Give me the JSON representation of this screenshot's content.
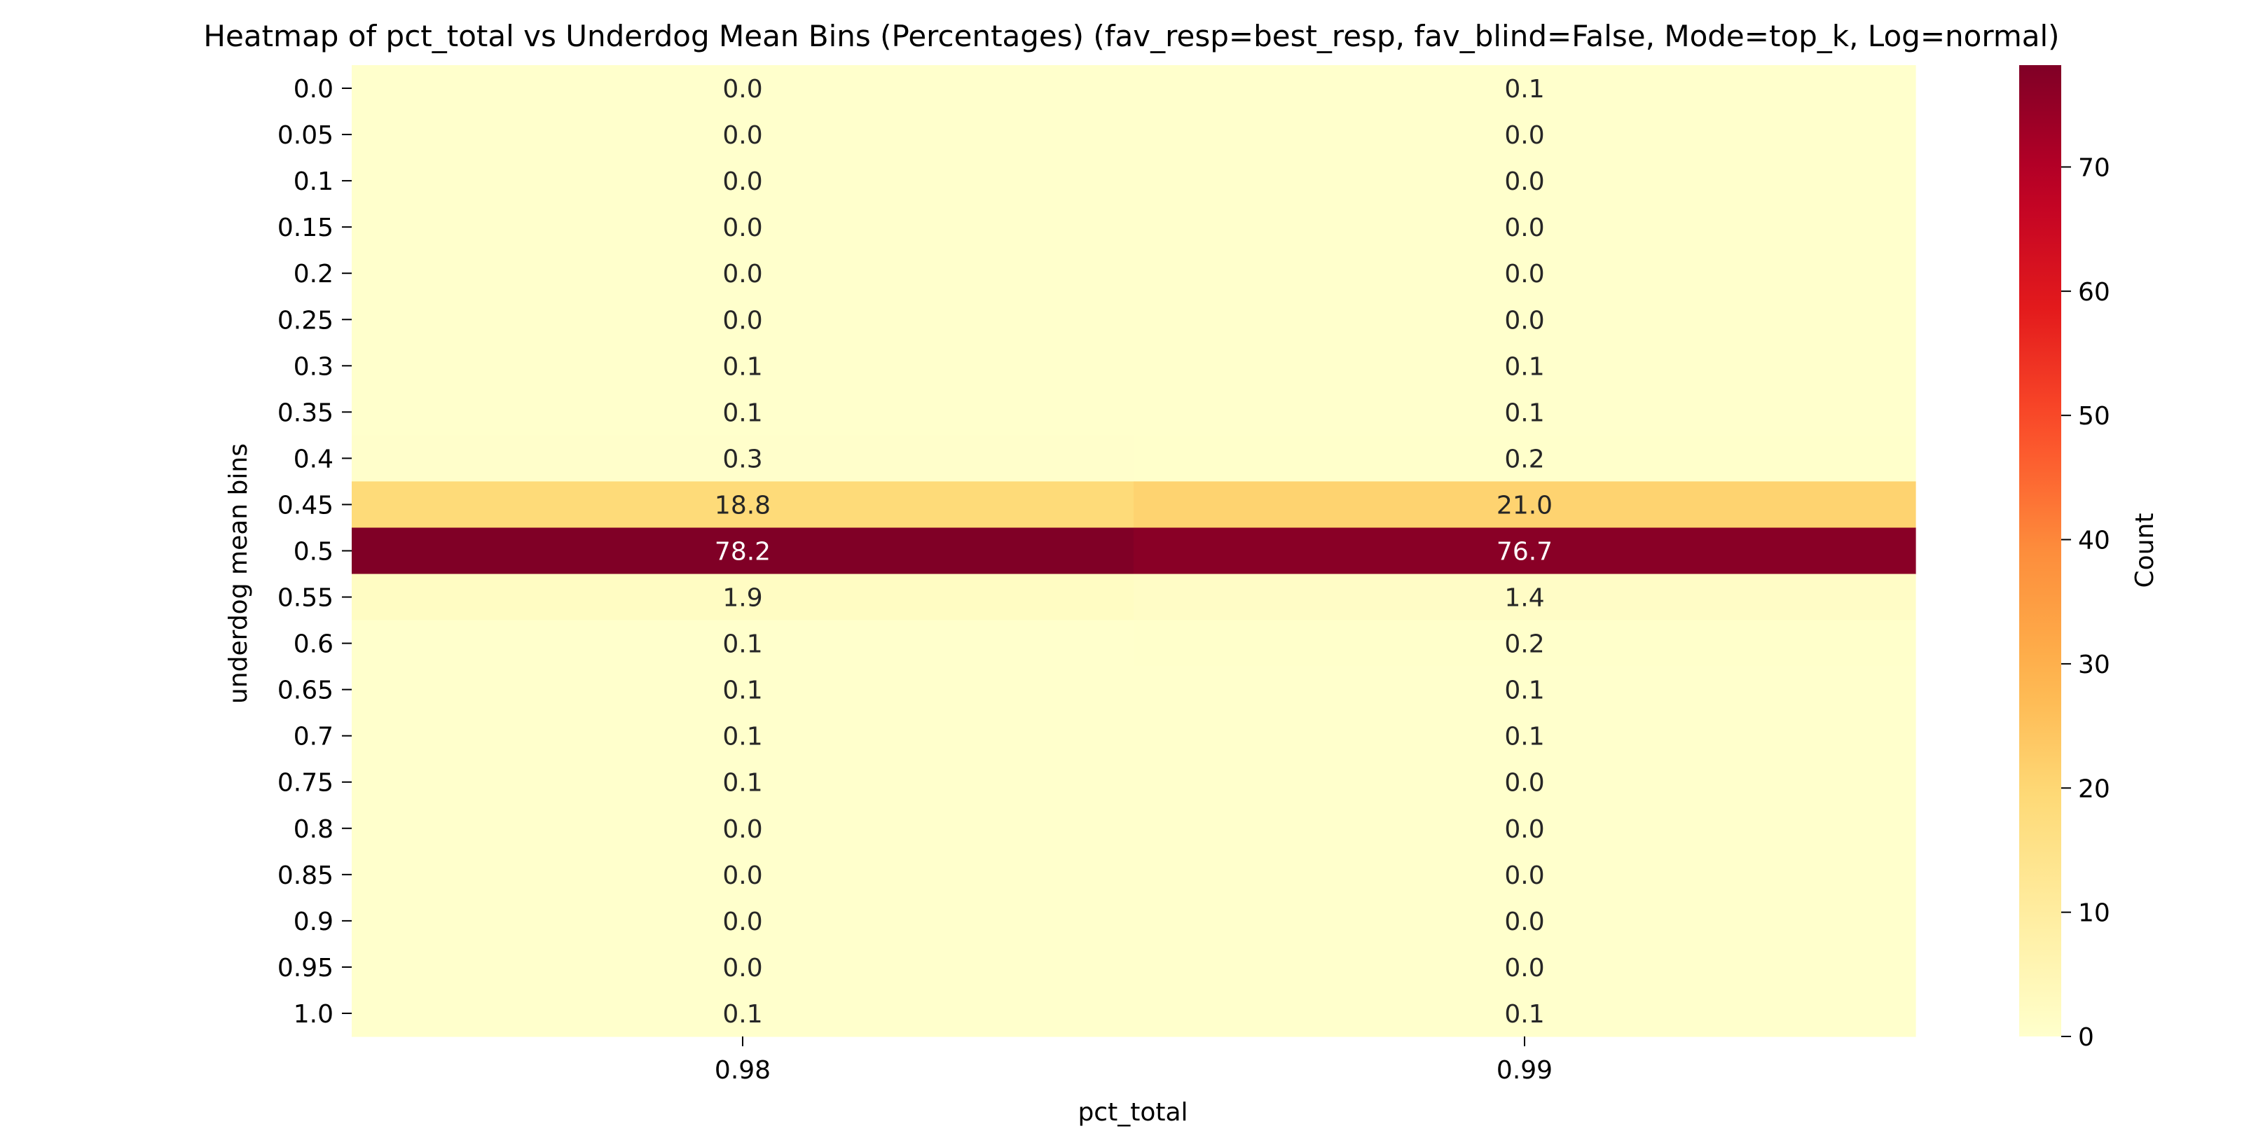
{
  "chart_data": {
    "type": "heatmap",
    "title": "Heatmap of pct_total vs Underdog Mean Bins (Percentages)  (fav_resp=best_resp, fav_blind=False, Mode=top_k, Log=normal)",
    "xlabel": "pct_total",
    "ylabel": "underdog mean bins",
    "x_categories": [
      "0.98",
      "0.99"
    ],
    "y_categories": [
      "0.0",
      "0.05",
      "0.1",
      "0.15",
      "0.2",
      "0.25",
      "0.3",
      "0.35",
      "0.4",
      "0.45",
      "0.5",
      "0.55",
      "0.6",
      "0.65",
      "0.7",
      "0.75",
      "0.8",
      "0.85",
      "0.9",
      "0.95",
      "1.0"
    ],
    "values": [
      [
        0.0,
        0.1
      ],
      [
        0.0,
        0.0
      ],
      [
        0.0,
        0.0
      ],
      [
        0.0,
        0.0
      ],
      [
        0.0,
        0.0
      ],
      [
        0.0,
        0.0
      ],
      [
        0.1,
        0.1
      ],
      [
        0.1,
        0.1
      ],
      [
        0.3,
        0.2
      ],
      [
        18.8,
        21.0
      ],
      [
        78.2,
        76.7
      ],
      [
        1.9,
        1.4
      ],
      [
        0.1,
        0.2
      ],
      [
        0.1,
        0.1
      ],
      [
        0.1,
        0.1
      ],
      [
        0.1,
        0.0
      ],
      [
        0.0,
        0.0
      ],
      [
        0.0,
        0.0
      ],
      [
        0.0,
        0.0
      ],
      [
        0.0,
        0.0
      ],
      [
        0.1,
        0.1
      ]
    ],
    "value_format": "0.1f",
    "colormap": "YlOrRd",
    "colorbar": {
      "label": "Count",
      "range": [
        0,
        78.2
      ],
      "ticks": [
        0,
        10,
        20,
        30,
        40,
        50,
        60,
        70
      ]
    },
    "grid": false
  }
}
